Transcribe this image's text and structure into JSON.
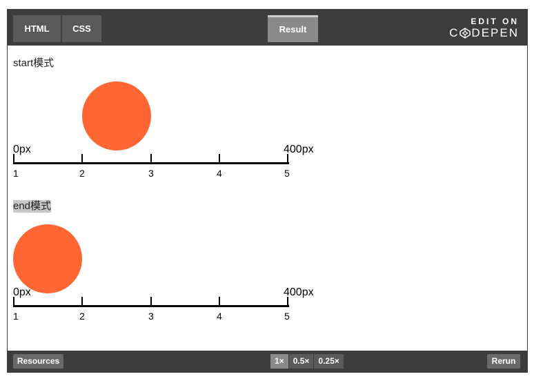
{
  "topbar": {
    "tabs": [
      {
        "label": "HTML"
      },
      {
        "label": "CSS"
      },
      {
        "label": "Result"
      }
    ],
    "edit_on": {
      "line1": "EDIT ON",
      "line2_pre": "C",
      "line2_post": "DEPEN",
      "logo_icon": "codepen-logo-icon"
    }
  },
  "demos": [
    {
      "label": "start模式",
      "ball_position": 1,
      "start_label": "0px",
      "end_label": "400px",
      "ticks": [
        "1",
        "2",
        "3",
        "4",
        "5"
      ]
    },
    {
      "label": "end模式",
      "highlighted": true,
      "ball_position": 0,
      "start_label": "0px",
      "end_label": "400px",
      "ticks": [
        "1",
        "2",
        "3",
        "4",
        "5"
      ]
    }
  ],
  "bottombar": {
    "resources_label": "Resources",
    "zoom": [
      {
        "label": "1×",
        "active": true
      },
      {
        "label": "0.5×",
        "active": false
      },
      {
        "label": "0.25×",
        "active": false
      }
    ],
    "rerun_label": "Rerun"
  },
  "colors": {
    "ball": "#ff6633",
    "bar": "#3d3d3e"
  }
}
